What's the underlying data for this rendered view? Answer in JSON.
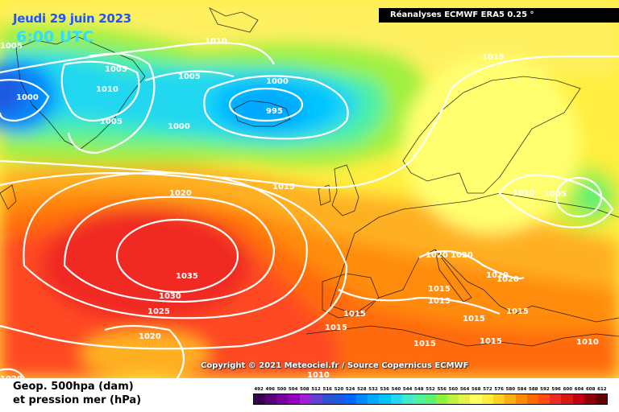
{
  "header": {
    "date": "Jeudi 29 juin 2023",
    "time": "6:00 UTC",
    "source": "Réanalyses ECMWF ERA5 0.25 °"
  },
  "footer": {
    "copyright": "Copyright © 2021 Meteociel.fr / Source Copernicus ECMWF",
    "legend_line1": "Geop. 500hpa (dam)",
    "legend_line2": "et pression mer (hPa)"
  },
  "scale": {
    "labels": [
      "492",
      "496",
      "500",
      "504",
      "508",
      "512",
      "516",
      "520",
      "524",
      "528",
      "532",
      "536",
      "540",
      "544",
      "548",
      "552",
      "556",
      "560",
      "564",
      "568",
      "572",
      "576",
      "580",
      "584",
      "588",
      "592",
      "596",
      "600",
      "604",
      "608",
      "612"
    ],
    "colors": [
      "#3a0050",
      "#5a0078",
      "#7a00a0",
      "#9400c0",
      "#a020d8",
      "#6040d0",
      "#3050d0",
      "#1a5ae0",
      "#0066ff",
      "#0088ff",
      "#00a8ff",
      "#00c4ff",
      "#20d8f0",
      "#40e8d0",
      "#50f0a0",
      "#60f070",
      "#90f040",
      "#c0f040",
      "#e8f050",
      "#ffff60",
      "#fff040",
      "#ffd020",
      "#ffb010",
      "#ff8c00",
      "#ff6a00",
      "#ff4a10",
      "#f02a20",
      "#d81818",
      "#c00010",
      "#900008",
      "#600000"
    ]
  },
  "isobars": [
    {
      "label": "1005",
      "text": "1005"
    },
    {
      "label": "1000",
      "text": "1000"
    },
    {
      "label": "1010",
      "text": "1010"
    },
    {
      "label": "995",
      "text": "995"
    },
    {
      "label": "1015",
      "text": "1015"
    },
    {
      "label": "1020",
      "text": "1020"
    },
    {
      "label": "1030",
      "text": "1030"
    },
    {
      "label": "1035",
      "text": "1035"
    },
    {
      "label": "1025",
      "text": "1025"
    }
  ]
}
